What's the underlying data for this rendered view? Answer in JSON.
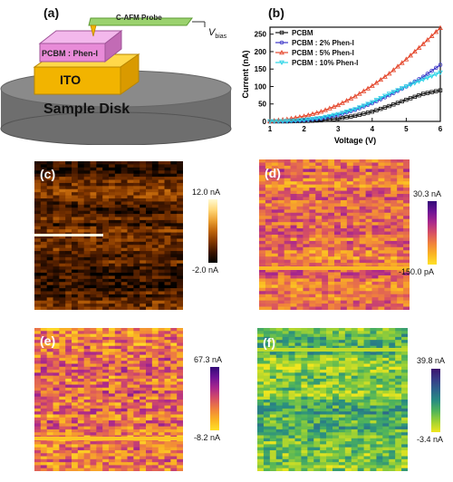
{
  "panel_a": {
    "label": "(a)",
    "probe_label": "C-AFM Probe",
    "vbias_main": "V",
    "vbias_sub": "bias",
    "layer_label": "PCBM : Phen-I",
    "ito_label": "ITO",
    "disk_label": "Sample Disk",
    "colors": {
      "probe": "#9bd26e",
      "layer": "#e88bd8",
      "ito": "#f2b400",
      "disk": "#777777"
    }
  },
  "panel_b": {
    "label": "(b)",
    "chart_data": {
      "type": "line",
      "xlabel": "Voltage (V)",
      "ylabel": "Current (nA)",
      "xlim": [
        1,
        6
      ],
      "ylim": [
        0,
        270
      ],
      "xticks": [
        "1",
        "2",
        "3",
        "4",
        "5",
        "6"
      ],
      "yticks": [
        "0",
        "50",
        "100",
        "150",
        "200",
        "250"
      ],
      "legend_position": "top-left",
      "x": [
        1.0,
        1.5,
        2.0,
        2.5,
        3.0,
        3.5,
        4.0,
        4.5,
        5.0,
        5.5,
        6.0
      ],
      "series": [
        {
          "name": "PCBM",
          "color": "#111111",
          "marker": "square",
          "values": [
            0,
            0,
            1,
            3,
            8,
            16,
            28,
            44,
            62,
            79,
            89
          ]
        },
        {
          "name": "PCBM : 2% Phen-I",
          "color": "#3b35c7",
          "marker": "circle",
          "values": [
            0,
            1,
            3,
            8,
            18,
            33,
            52,
            75,
            100,
            128,
            162
          ]
        },
        {
          "name": "PCBM : 5% Phen-I",
          "color": "#e4462b",
          "marker": "triangle",
          "values": [
            1,
            6,
            15,
            28,
            47,
            72,
            102,
            137,
            178,
            222,
            268
          ]
        },
        {
          "name": "PCBM : 10% Phen-I",
          "color": "#27d3e6",
          "marker": "triangle-down",
          "values": [
            0,
            1,
            4,
            10,
            21,
            35,
            55,
            79,
            100,
            120,
            140
          ]
        }
      ]
    }
  },
  "panels": [
    {
      "id": "c",
      "label": "(c)",
      "cbar_max": "12.0 nA",
      "cbar_min": "-2.0 nA",
      "palette": "afmhot"
    },
    {
      "id": "d",
      "label": "(d)",
      "cbar_max": "30.3 nA",
      "cbar_min": "-150.0 pA",
      "palette": "plasma"
    },
    {
      "id": "e",
      "label": "(e)",
      "cbar_max": "67.3 nA",
      "cbar_min": "-8.2 nA",
      "palette": "plasma"
    },
    {
      "id": "f",
      "label": "(f)",
      "cbar_max": "39.8 nA",
      "cbar_min": "-3.4 nA",
      "palette": "viridis"
    }
  ]
}
